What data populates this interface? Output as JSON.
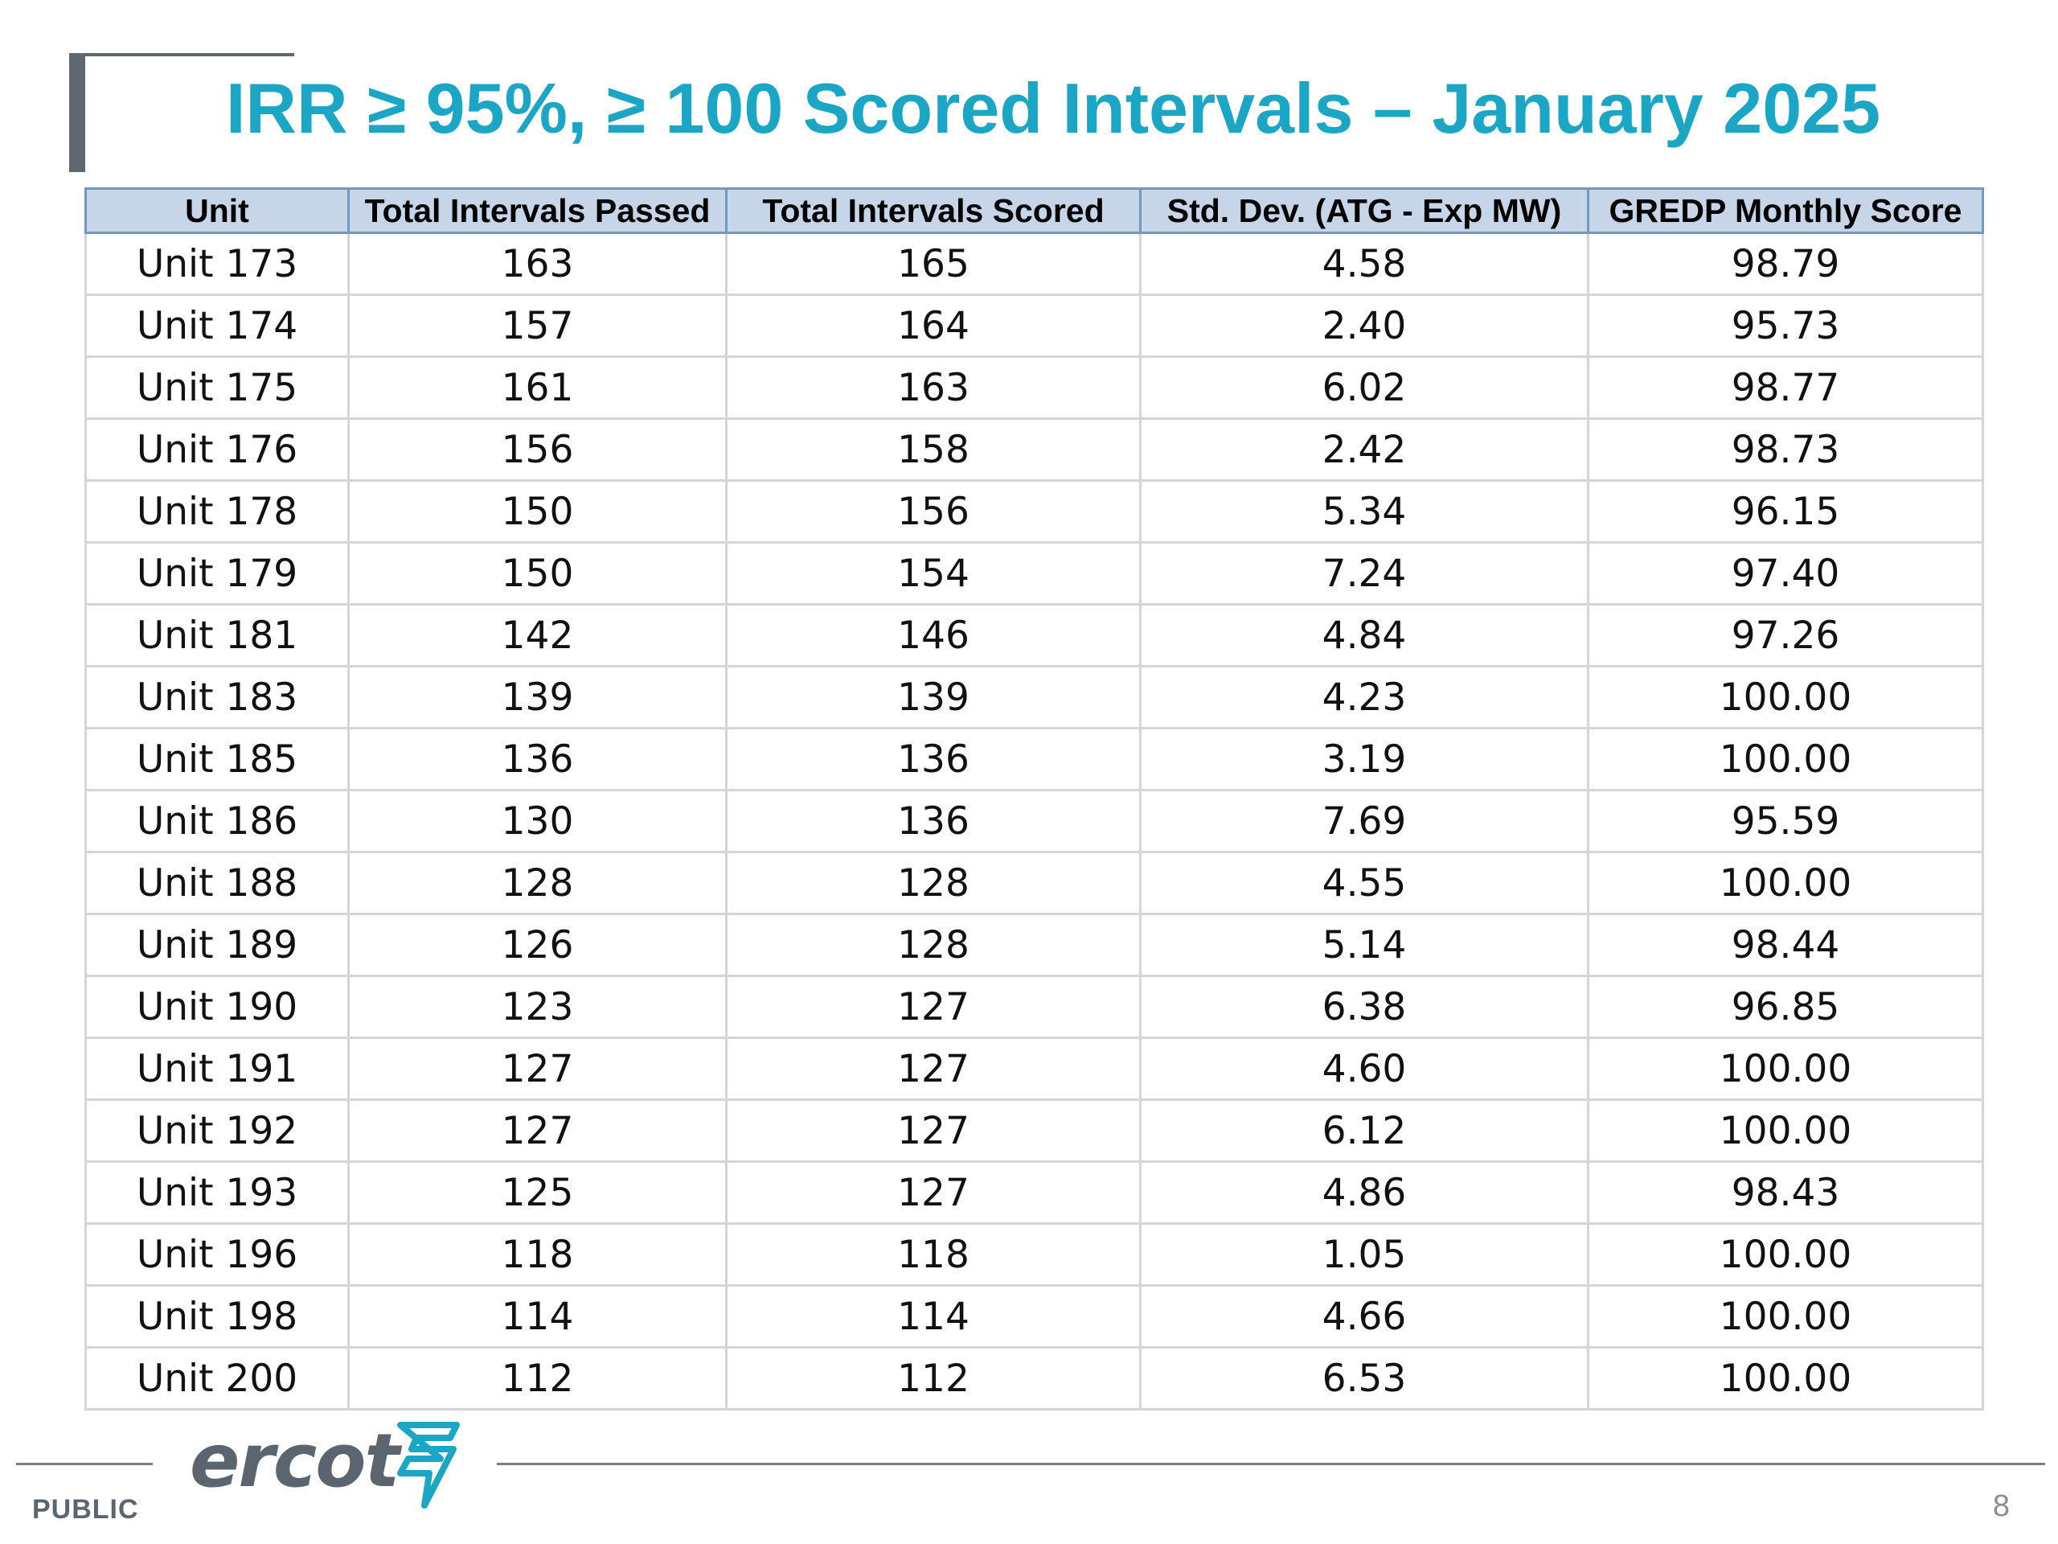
{
  "slide": {
    "title": "IRR ≥ 95%, ≥ 100 Scored Intervals – January 2025",
    "footer_label": "PUBLIC",
    "page_number": "8",
    "logo_text": "ercot"
  },
  "table": {
    "headers": [
      "Unit",
      "Total Intervals Passed",
      "Total Intervals Scored",
      "Std. Dev. (ATG - Exp MW)",
      "GREDP Monthly Score"
    ],
    "rows": [
      [
        "Unit 173",
        "163",
        "165",
        "4.58",
        "98.79"
      ],
      [
        "Unit 174",
        "157",
        "164",
        "2.40",
        "95.73"
      ],
      [
        "Unit 175",
        "161",
        "163",
        "6.02",
        "98.77"
      ],
      [
        "Unit 176",
        "156",
        "158",
        "2.42",
        "98.73"
      ],
      [
        "Unit 178",
        "150",
        "156",
        "5.34",
        "96.15"
      ],
      [
        "Unit 179",
        "150",
        "154",
        "7.24",
        "97.40"
      ],
      [
        "Unit 181",
        "142",
        "146",
        "4.84",
        "97.26"
      ],
      [
        "Unit 183",
        "139",
        "139",
        "4.23",
        "100.00"
      ],
      [
        "Unit 185",
        "136",
        "136",
        "3.19",
        "100.00"
      ],
      [
        "Unit 186",
        "130",
        "136",
        "7.69",
        "95.59"
      ],
      [
        "Unit 188",
        "128",
        "128",
        "4.55",
        "100.00"
      ],
      [
        "Unit 189",
        "126",
        "128",
        "5.14",
        "98.44"
      ],
      [
        "Unit 190",
        "123",
        "127",
        "6.38",
        "96.85"
      ],
      [
        "Unit 191",
        "127",
        "127",
        "4.60",
        "100.00"
      ],
      [
        "Unit 192",
        "127",
        "127",
        "6.12",
        "100.00"
      ],
      [
        "Unit 193",
        "125",
        "127",
        "4.86",
        "98.43"
      ],
      [
        "Unit 196",
        "118",
        "118",
        "1.05",
        "100.00"
      ],
      [
        "Unit 198",
        "114",
        "114",
        "4.66",
        "100.00"
      ],
      [
        "Unit 200",
        "112",
        "112",
        "6.53",
        "100.00"
      ]
    ]
  },
  "colors": {
    "title": "#1ba6c6",
    "header_bg": "#c6d6e8",
    "header_border": "#6e9bc5",
    "logo": "#5b6570",
    "logo_accent": "#1ba6c6"
  },
  "icons": {
    "logo_mark": "ercot-lightning-mark-icon"
  }
}
